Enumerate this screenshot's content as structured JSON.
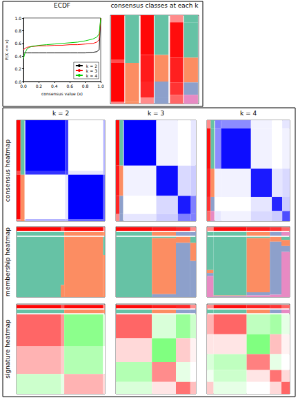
{
  "chart_data": {
    "type": "consensus_partition_figure",
    "ecdf": {
      "type": "line",
      "title": "ECDF",
      "x_label": "consensus value (x)",
      "y_label": "F(X <= x)",
      "x": [
        0,
        0.02,
        0.05,
        0.1,
        0.2,
        0.3,
        0.4,
        0.5,
        0.6,
        0.7,
        0.8,
        0.9,
        0.95,
        0.98,
        1.0
      ],
      "series": [
        {
          "name": "k = 2",
          "color": "#000000",
          "values": [
            0.45,
            0.45,
            0.45,
            0.45,
            0.45,
            0.45,
            0.45,
            0.45,
            0.45,
            0.45,
            0.45,
            0.46,
            0.47,
            0.5,
            1.0
          ]
        },
        {
          "name": "k = 3",
          "color": "#FF0000",
          "values": [
            0.5,
            0.52,
            0.54,
            0.55,
            0.56,
            0.56,
            0.57,
            0.57,
            0.58,
            0.58,
            0.59,
            0.6,
            0.62,
            0.66,
            1.0
          ]
        },
        {
          "name": "k = 4",
          "color": "#00CC00",
          "values": [
            0.36,
            0.45,
            0.52,
            0.55,
            0.57,
            0.58,
            0.59,
            0.6,
            0.61,
            0.62,
            0.64,
            0.67,
            0.7,
            0.75,
            1.0
          ]
        }
      ],
      "xlim": [
        0,
        1
      ],
      "xticks": [
        {
          "value": 0,
          "label": "0.0"
        },
        {
          "value": 0.2,
          "label": "0.2"
        },
        {
          "value": 0.4,
          "label": "0.4"
        },
        {
          "value": 0.6,
          "label": "0.6"
        },
        {
          "value": 0.8,
          "label": "0.8"
        },
        {
          "value": 1,
          "label": "1.0"
        }
      ],
      "ylim": [
        0,
        1
      ],
      "yticks": [
        {
          "value": 0,
          "label": "0.0"
        },
        {
          "value": 0.2,
          "label": "0.2"
        },
        {
          "value": 0.4,
          "label": "0.4"
        },
        {
          "value": 0.6,
          "label": "0.6"
        },
        {
          "value": 0.8,
          "label": "0.8"
        },
        {
          "value": 1,
          "label": "1.0"
        }
      ],
      "legend": "bottom right",
      "grid": false
    },
    "classes_title": "consensus classes at each k",
    "row_titles": [
      "consensus heatmap",
      "membership heatmap",
      "signature heatmap"
    ],
    "class_colors": [
      "#66C2A5",
      "#FC8D62",
      "#8DA0CB",
      "#E78AC3"
    ],
    "consensus_colors": [
      "#FFFFFF",
      "#0000FF"
    ],
    "consensus_range": [
      0,
      1
    ],
    "silhouette_colors": [
      "#FFFFFF",
      "#FF0000"
    ],
    "silhouette_range": [
      0,
      1
    ],
    "signature_colors": [
      "#00FF00",
      "#FFFFFF",
      "#FF0000"
    ],
    "signature_range": [
      -2,
      2
    ],
    "partitions": [
      {
        "title": "k = 2",
        "sizes": [
          50,
          4,
          44,
          2
        ],
        "classes": [
          1,
          1,
          2,
          2
        ],
        "silhouette": [
          0.99,
          0.7,
          0.98,
          0.5
        ],
        "consensus": [
          [
            1.0,
            0.8,
            0.0,
            0.3
          ],
          [
            0.8,
            0.7,
            0.1,
            0.3
          ],
          [
            0.0,
            0.1,
            1.0,
            0.6
          ],
          [
            0.3,
            0.3,
            0.6,
            0.6
          ]
        ],
        "membership": [
          [
            1,
            0
          ],
          [
            0.8,
            0.2
          ],
          [
            0,
            1
          ],
          [
            0.3,
            0.7
          ]
        ],
        "gene_groups": [
          40,
          35,
          25
        ],
        "signature": [
          [
            1.2,
            0.8,
            -0.9,
            -0.3
          ],
          [
            0.6,
            0.4,
            -0.6,
            0
          ],
          [
            -0.4,
            -0.2,
            0.6,
            0.3
          ]
        ]
      },
      {
        "title": "k = 3",
        "sizes": [
          45,
          30,
          18,
          7
        ],
        "classes": [
          1,
          2,
          3,
          3
        ],
        "silhouette": [
          0.97,
          0.9,
          0.85,
          0.45
        ],
        "consensus": [
          [
            1.0,
            0.05,
            0.0,
            0.1
          ],
          [
            0.05,
            0.95,
            0.15,
            0.2
          ],
          [
            0.0,
            0.15,
            0.9,
            0.5
          ],
          [
            0.1,
            0.2,
            0.5,
            0.5
          ]
        ],
        "membership": [
          [
            1,
            0,
            0
          ],
          [
            0.02,
            0.93,
            0.05
          ],
          [
            0,
            0.1,
            0.9
          ],
          [
            0.1,
            0.3,
            0.6
          ]
        ],
        "gene_groups": [
          30,
          30,
          25,
          15
        ],
        "signature": [
          [
            1.2,
            -0.3,
            -0.8,
            -0.4
          ],
          [
            0.3,
            -1.0,
            0.4,
            0.1
          ],
          [
            -0.6,
            0.9,
            -0.2,
            0
          ],
          [
            -0.3,
            0.2,
            1.1,
            0.5
          ]
        ]
      },
      {
        "title": "k = 4",
        "sizes": [
          8,
          40,
          28,
          14,
          10
        ],
        "classes": [
          1,
          1,
          2,
          3,
          4
        ],
        "silhouette": [
          0.45,
          0.95,
          0.88,
          0.8,
          0.6
        ],
        "consensus": [
          [
            0.5,
            0.45,
            0.05,
            0.0,
            0.1
          ],
          [
            0.45,
            0.95,
            0.05,
            0.0,
            0.05
          ],
          [
            0.05,
            0.05,
            0.9,
            0.1,
            0.15
          ],
          [
            0,
            0,
            0.1,
            0.85,
            0.2
          ],
          [
            0.1,
            0.05,
            0.15,
            0.2,
            0.7
          ]
        ],
        "membership": [
          [
            0.55,
            0.05,
            0.05,
            0.35
          ],
          [
            0.97,
            0.01,
            0.01,
            0.01
          ],
          [
            0.02,
            0.9,
            0.05,
            0.03
          ],
          [
            0,
            0.08,
            0.88,
            0.04
          ],
          [
            0.05,
            0.1,
            0.1,
            0.75
          ]
        ],
        "gene_groups": [
          25,
          25,
          20,
          15,
          15
        ],
        "signature": [
          [
            0.6,
            1.2,
            -0.5,
            -0.7,
            -0.2
          ],
          [
            0.2,
            0.2,
            -1.0,
            0.5,
            0.1
          ],
          [
            -0.3,
            -0.5,
            1.0,
            -0.2,
            0
          ],
          [
            -0.1,
            -0.4,
            0.2,
            1.1,
            0.3
          ],
          [
            0.4,
            -0.2,
            0,
            0.3,
            1.2
          ]
        ]
      }
    ]
  }
}
